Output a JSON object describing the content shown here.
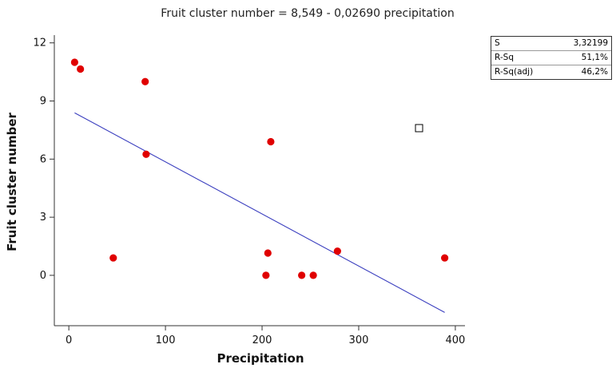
{
  "chart_data": {
    "type": "scatter",
    "title": "Fruit cluster number =  8,549 - 0,02690 precipitation",
    "xlabel": "Precipitation",
    "ylabel": "Fruit cluster number",
    "xlim": [
      -15,
      410
    ],
    "ylim": [
      -2.6,
      12.4
    ],
    "xticks": [
      0,
      100,
      200,
      300,
      400
    ],
    "yticks": [
      0,
      3,
      6,
      9,
      12
    ],
    "xtick_labels": [
      "0",
      "100",
      "200",
      "300",
      "400"
    ],
    "ytick_labels": [
      "0",
      "3",
      "6",
      "9",
      "12"
    ],
    "points": [
      {
        "x": 6,
        "y": 11.0
      },
      {
        "x": 12,
        "y": 10.65
      },
      {
        "x": 46,
        "y": 0.9
      },
      {
        "x": 79,
        "y": 10.0
      },
      {
        "x": 80,
        "y": 6.25
      },
      {
        "x": 204,
        "y": 0.0
      },
      {
        "x": 206,
        "y": 1.15
      },
      {
        "x": 209,
        "y": 6.9
      },
      {
        "x": 241,
        "y": 0.0
      },
      {
        "x": 253,
        "y": 0.0
      },
      {
        "x": 278,
        "y": 1.25
      },
      {
        "x": 389,
        "y": 0.9
      }
    ],
    "fit": {
      "intercept": 8.549,
      "slope": -0.0269,
      "x_range": [
        6,
        389
      ]
    },
    "point_color": "#e00000",
    "line_color": "#3b3fbf",
    "grid": false
  },
  "stats": {
    "rows": [
      {
        "label": "S",
        "value": "3,32199"
      },
      {
        "label": "R-Sq",
        "value": "51,1%"
      },
      {
        "label": "R-Sq(adj)",
        "value": "46,2%"
      }
    ]
  }
}
